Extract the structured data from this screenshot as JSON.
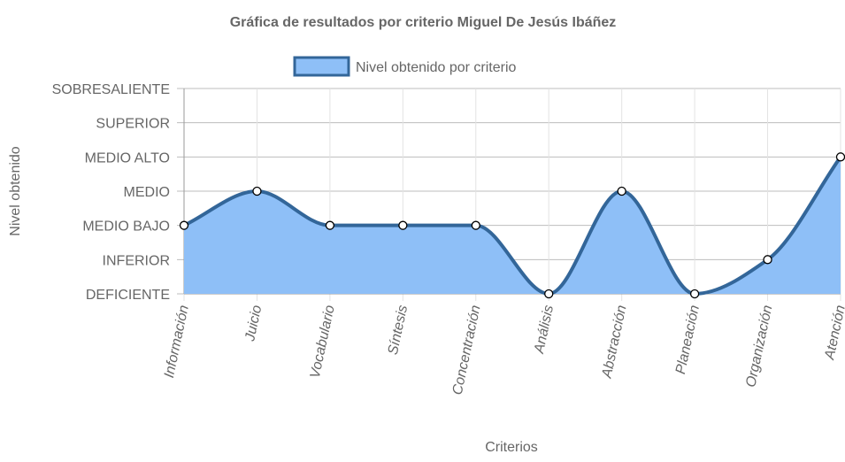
{
  "chart_data": {
    "type": "area",
    "title": "Gráfica de resultados por criterio Miguel De Jesús Ibáñez",
    "xlabel": "Criterios",
    "ylabel": "Nivel obtenido",
    "categories": [
      "Información",
      "Juicio",
      "Vocabulario",
      "Síntesis",
      "Concentración",
      "Análisis",
      "Abstracción",
      "Planeación",
      "Organización",
      "Atención"
    ],
    "y_levels": [
      "DEFICIENTE",
      "INFERIOR",
      "MEDIO BAJO",
      "MEDIO",
      "MEDIO ALTO",
      "SUPERIOR",
      "SOBRESALIENTE"
    ],
    "series": [
      {
        "name": "Nivel obtenido por criterio",
        "values": [
          2,
          3,
          2,
          2,
          2,
          0,
          3,
          0,
          1,
          4
        ],
        "value_labels": [
          "MEDIO BAJO",
          "MEDIO",
          "MEDIO BAJO",
          "MEDIO BAJO",
          "MEDIO BAJO",
          "DEFICIENTE",
          "MEDIO",
          "DEFICIENTE",
          "INFERIOR",
          "MEDIO ALTO"
        ]
      }
    ],
    "ylim": [
      0,
      6
    ],
    "grid": true,
    "legend": "top-center",
    "colors": {
      "fill": "#8ebff7",
      "line": "#336699",
      "point_fill": "#ffffff",
      "point_stroke": "#000000",
      "grid": "#bdbdbd",
      "text": "#666666"
    }
  }
}
